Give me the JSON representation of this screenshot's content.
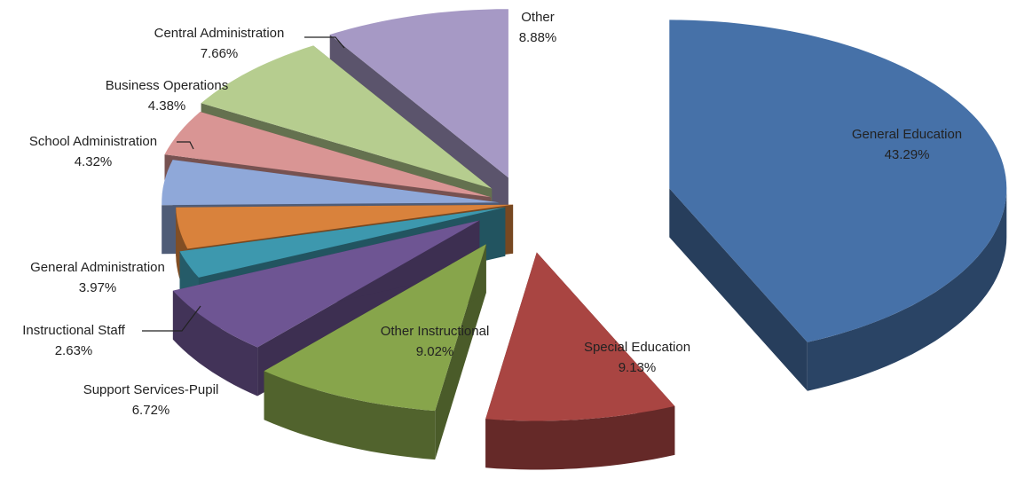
{
  "chart_data": {
    "type": "pie3d",
    "categories": [
      "General Education",
      "Special Education",
      "Other Instructional",
      "Support Services-Pupil",
      "Instructional Staff",
      "General Administration",
      "School Administration",
      "Business Operations",
      "Central Administration",
      "Other"
    ],
    "values": [
      43.29,
      9.13,
      9.02,
      6.72,
      2.63,
      3.97,
      4.32,
      4.38,
      7.66,
      8.88
    ],
    "value_labels": [
      "43.29%",
      "9.13%",
      "9.02%",
      "6.72%",
      "2.63%",
      "3.97%",
      "4.32%",
      "4.38%",
      "7.66%",
      "8.88%"
    ],
    "colors": [
      "#4671a8",
      "#a94542",
      "#87a54b",
      "#6e5593",
      "#3d98ae",
      "#d9823c",
      "#8fa8d9",
      "#d99594",
      "#b6cd8f",
      "#a699c5"
    ]
  }
}
